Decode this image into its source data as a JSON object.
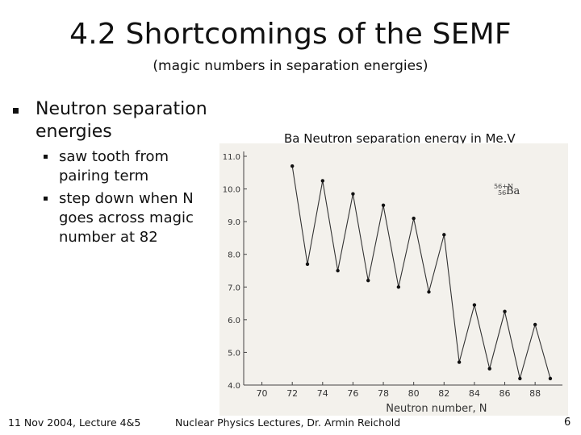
{
  "slide": {
    "title": "4.2 Shortcomings of the SEMF",
    "subtitle": "(magic numbers in separation energies)"
  },
  "bullets": {
    "main": "Neutron separation energies",
    "sub": [
      "saw tooth from pairing term",
      "step down when N goes across magic number at 82"
    ]
  },
  "chart_caption": "Ba Neutron separation energy in Me.V",
  "footer": {
    "left": "11 Nov 2004, Lecture 4&5",
    "center": "Nuclear Physics  Lectures, Dr. Armin Reichold",
    "page": "6"
  },
  "chart_data": {
    "type": "line",
    "title": "Ba Neutron separation energy in Me.V",
    "xlabel": "Neutron number, N",
    "ylabel": "",
    "inset_label": "56+N 56 Ba",
    "xlim": [
      68.8,
      89.8
    ],
    "ylim": [
      4.0,
      11.0
    ],
    "xticks": [
      70,
      72,
      74,
      76,
      78,
      80,
      82,
      84,
      86,
      88
    ],
    "yticks": [
      "4.0",
      "5.0",
      "6.0",
      "7.0",
      "8.0",
      "9.0",
      "10.0",
      "11.0"
    ],
    "grid": false,
    "series": [
      {
        "x": [
          72,
          73,
          74,
          75,
          76,
          77,
          78,
          79,
          80,
          81,
          82,
          83,
          84,
          85,
          86,
          87,
          88,
          89
        ],
        "values": [
          10.7,
          7.7,
          10.25,
          7.5,
          9.85,
          7.2,
          9.5,
          7.0,
          9.1,
          6.85,
          8.6,
          4.7,
          6.45,
          4.5,
          6.25,
          4.2,
          5.85,
          4.2
        ]
      }
    ]
  }
}
